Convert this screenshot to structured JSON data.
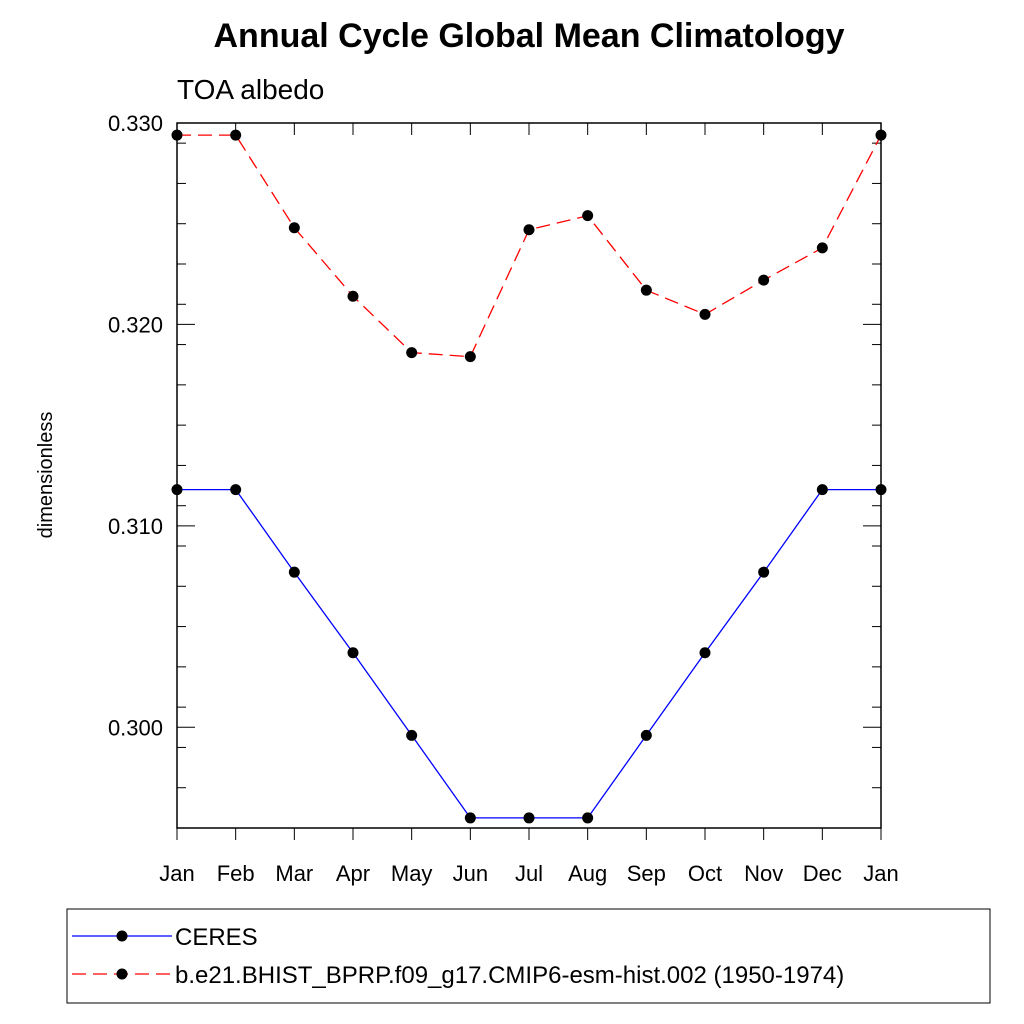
{
  "chart_data": {
    "type": "line",
    "title": "Annual Cycle Global Mean Climatology",
    "subtitle": "TOA albedo",
    "xlabel": "",
    "ylabel": "dimensionless",
    "categories": [
      "Jan",
      "Feb",
      "Mar",
      "Apr",
      "May",
      "Jun",
      "Jul",
      "Aug",
      "Sep",
      "Oct",
      "Nov",
      "Dec",
      "Jan"
    ],
    "ylim": [
      0.295,
      0.33
    ],
    "yticks": [
      0.3,
      0.31,
      0.32,
      0.33
    ],
    "ytick_labels": [
      "0.300",
      "0.310",
      "0.320",
      "0.330"
    ],
    "y_minor_step": 0.002,
    "series": [
      {
        "name": "CERES",
        "color": "#0000ff",
        "dash": "solid",
        "values": [
          0.3118,
          0.3118,
          0.3077,
          0.3037,
          0.2996,
          0.2955,
          0.2955,
          0.2955,
          0.2996,
          0.3037,
          0.3077,
          0.3118,
          0.3118
        ]
      },
      {
        "name": "b.e21.BHIST_BPRP.f09_g17.CMIP6-esm-hist.002 (1950-1974)",
        "color": "#ff0000",
        "dash": "dashed",
        "values": [
          0.3294,
          0.3294,
          0.3248,
          0.3214,
          0.3186,
          0.3184,
          0.3247,
          0.3254,
          0.3217,
          0.3205,
          0.3222,
          0.3238,
          0.3294
        ]
      }
    ],
    "marker_color": "#000000",
    "legend_position": "bottom"
  }
}
